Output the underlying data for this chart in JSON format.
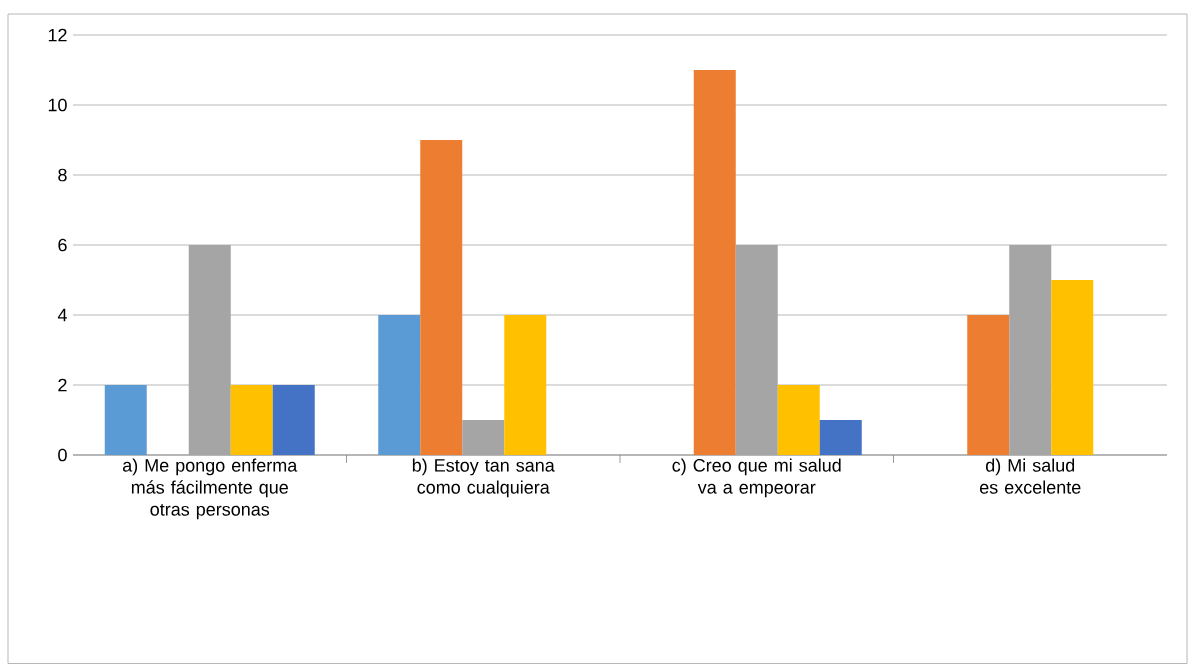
{
  "chart_data": {
    "type": "bar",
    "categories": [
      "a) Me pongo enferma más fácilmente que otras personas",
      "b) Estoy tan sana como cualquiera",
      "c) Creo que mi salud va a empeorar",
      "d) Mi salud es excelente"
    ],
    "series": [
      {
        "color": "#5b9bd5",
        "values": [
          2,
          4,
          0,
          0
        ]
      },
      {
        "color": "#ed7d31",
        "values": [
          0,
          9,
          11,
          4
        ]
      },
      {
        "color": "#a5a5a5",
        "values": [
          6,
          1,
          6,
          6
        ]
      },
      {
        "color": "#ffc000",
        "values": [
          2,
          4,
          2,
          5
        ]
      },
      {
        "color": "#4472c4",
        "values": [
          2,
          0,
          1,
          0
        ]
      }
    ],
    "ylim": [
      0,
      12
    ],
    "yticks": [
      0,
      2,
      4,
      6,
      8,
      10,
      12
    ],
    "grid": "y"
  }
}
